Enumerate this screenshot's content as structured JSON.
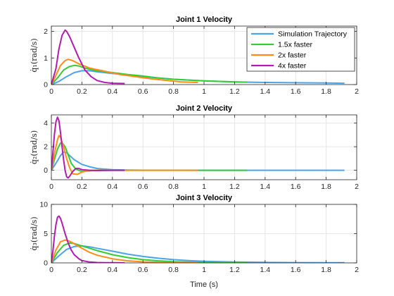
{
  "figure": {
    "xlabel": "Time (s)"
  },
  "legend": [
    "Simulation Trajectory",
    "1.5x faster",
    "2x faster",
    "4x faster"
  ],
  "colors": {
    "sim": "#4da3e8",
    "x1_5": "#33cc33",
    "x2": "#ff8c1a",
    "x4": "#b31bb3",
    "grid": "#e6e6e6",
    "axis": "#262626"
  },
  "chart_data": [
    {
      "type": "line",
      "title": "Joint 1 Velocity",
      "ylabel": "q̇₁(rad/s)",
      "xlim": [
        0,
        2
      ],
      "ylim": [
        0,
        2.2
      ],
      "xticks": [
        0,
        0.2,
        0.4,
        0.6,
        0.8,
        1,
        1.2,
        1.4,
        1.6,
        1.8,
        2
      ],
      "xtick_labels": [
        "0",
        "0.2",
        "0.4",
        "0.6",
        "0.8",
        "1",
        "1.2",
        "1.4",
        "1.6",
        "1.8",
        "2"
      ],
      "yticks": [
        0,
        1,
        2
      ],
      "ytick_labels": [
        "0",
        "1",
        "2"
      ],
      "legend_position": "top-right",
      "series": [
        {
          "name": "Simulation Trajectory",
          "color_key": "sim",
          "x": [
            0,
            0.05,
            0.1,
            0.15,
            0.2,
            0.25,
            0.3,
            0.4,
            0.5,
            0.6,
            0.7,
            0.8,
            0.9,
            1.0,
            1.1,
            1.2,
            1.3,
            1.4,
            1.6,
            1.8,
            1.92
          ],
          "y": [
            0,
            0.12,
            0.3,
            0.45,
            0.52,
            0.52,
            0.48,
            0.42,
            0.35,
            0.3,
            0.25,
            0.2,
            0.17,
            0.14,
            0.12,
            0.1,
            0.09,
            0.08,
            0.07,
            0.06,
            0.05
          ]
        },
        {
          "name": "1.5x faster",
          "color_key": "x1_5",
          "x": [
            0,
            0.04,
            0.08,
            0.12,
            0.15,
            0.18,
            0.22,
            0.3,
            0.4,
            0.5,
            0.6,
            0.7,
            0.8,
            0.9,
            1.0,
            1.1,
            1.2,
            1.28
          ],
          "y": [
            0,
            0.25,
            0.55,
            0.68,
            0.72,
            0.7,
            0.62,
            0.52,
            0.45,
            0.38,
            0.32,
            0.25,
            0.2,
            0.17,
            0.14,
            0.12,
            0.1,
            0.09
          ]
        },
        {
          "name": "2x faster",
          "color_key": "x2",
          "x": [
            0,
            0.03,
            0.06,
            0.09,
            0.11,
            0.14,
            0.18,
            0.25,
            0.35,
            0.45,
            0.55,
            0.65,
            0.75,
            0.85,
            0.96
          ],
          "y": [
            0,
            0.35,
            0.72,
            0.9,
            0.95,
            0.9,
            0.78,
            0.62,
            0.5,
            0.38,
            0.3,
            0.22,
            0.16,
            0.1,
            0.08
          ]
        },
        {
          "name": "4x faster",
          "color_key": "x4",
          "x": [
            0,
            0.03,
            0.05,
            0.07,
            0.09,
            0.1,
            0.12,
            0.15,
            0.18,
            0.22,
            0.26,
            0.3,
            0.35,
            0.4,
            0.48
          ],
          "y": [
            0,
            0.6,
            1.35,
            1.85,
            2.05,
            2.0,
            1.8,
            1.4,
            1.0,
            0.55,
            0.3,
            0.15,
            0.08,
            0.05,
            0.04
          ]
        }
      ]
    },
    {
      "type": "line",
      "title": "Joint 2 Velocity",
      "ylabel": "q̇₂(rad/s)",
      "xlim": [
        0,
        2
      ],
      "ylim": [
        -0.8,
        4.7
      ],
      "xticks": [
        0,
        0.2,
        0.4,
        0.6,
        0.8,
        1,
        1.2,
        1.4,
        1.6,
        1.8,
        2
      ],
      "xtick_labels": [
        "0",
        "0.2",
        "0.4",
        "0.6",
        "0.8",
        "1",
        "1.2",
        "1.4",
        "1.6",
        "1.8",
        "2"
      ],
      "yticks": [
        0,
        2,
        4
      ],
      "ytick_labels": [
        "0",
        "2",
        "4"
      ],
      "series": [
        {
          "name": "Simulation Trajectory",
          "color_key": "sim",
          "x": [
            0,
            0.03,
            0.06,
            0.08,
            0.1,
            0.12,
            0.15,
            0.2,
            0.25,
            0.3,
            0.4,
            0.5,
            0.6,
            0.8,
            1.0,
            1.2,
            1.5,
            1.92
          ],
          "y": [
            0,
            0.6,
            1.25,
            1.55,
            1.5,
            1.25,
            0.9,
            0.5,
            0.3,
            0.15,
            0.05,
            0.02,
            0.01,
            0.01,
            0.0,
            0.0,
            0.0,
            0.0
          ]
        },
        {
          "name": "1.5x faster",
          "color_key": "x1_5",
          "x": [
            0,
            0.02,
            0.04,
            0.06,
            0.07,
            0.09,
            0.11,
            0.13,
            0.16,
            0.2,
            0.25,
            0.3,
            0.4,
            0.6,
            0.8,
            1.0,
            1.28
          ],
          "y": [
            0,
            0.9,
            1.8,
            2.3,
            2.35,
            2.0,
            1.3,
            0.6,
            0.1,
            -0.1,
            -0.05,
            0.0,
            0.0,
            0.0,
            0.0,
            0.0,
            0.0
          ]
        },
        {
          "name": "2x faster",
          "color_key": "x2",
          "x": [
            0,
            0.02,
            0.04,
            0.05,
            0.06,
            0.08,
            0.1,
            0.12,
            0.14,
            0.17,
            0.2,
            0.25,
            0.3,
            0.5,
            0.7,
            0.96
          ],
          "y": [
            0,
            1.4,
            2.6,
            2.95,
            2.8,
            2.0,
            1.0,
            0.2,
            -0.3,
            -0.35,
            -0.15,
            0.0,
            0.0,
            0.0,
            0.0,
            0.0
          ]
        },
        {
          "name": "4x faster",
          "color_key": "x4",
          "x": [
            0,
            0.01,
            0.02,
            0.03,
            0.04,
            0.05,
            0.06,
            0.07,
            0.08,
            0.09,
            0.1,
            0.11,
            0.12,
            0.14,
            0.16,
            0.18,
            0.2,
            0.25,
            0.3,
            0.4,
            0.48
          ],
          "y": [
            0,
            1.5,
            3.0,
            4.1,
            4.5,
            4.2,
            3.2,
            2.0,
            0.9,
            0.0,
            -0.55,
            -0.65,
            -0.5,
            -0.1,
            0.15,
            0.15,
            0.05,
            0.0,
            -0.02,
            0.0,
            0.0
          ]
        }
      ]
    },
    {
      "type": "line",
      "title": "Joint 3 Velocity",
      "ylabel": "q̇₃(rad/s)",
      "xlim": [
        0,
        2
      ],
      "ylim": [
        0,
        10
      ],
      "xticks": [
        0,
        0.2,
        0.4,
        0.6,
        0.8,
        1,
        1.2,
        1.4,
        1.6,
        1.8,
        2
      ],
      "xtick_labels": [
        "0",
        "0.2",
        "0.4",
        "0.6",
        "0.8",
        "1",
        "1.2",
        "1.4",
        "1.6",
        "1.8",
        "2"
      ],
      "yticks": [
        0,
        5,
        10
      ],
      "ytick_labels": [
        "0",
        "5",
        "10"
      ],
      "xlabel": "Time (s)",
      "series": [
        {
          "name": "Simulation Trajectory",
          "color_key": "sim",
          "x": [
            0,
            0.05,
            0.1,
            0.15,
            0.2,
            0.25,
            0.3,
            0.4,
            0.5,
            0.6,
            0.7,
            0.8,
            0.9,
            1.0,
            1.2,
            1.4,
            1.6,
            1.8,
            1.92
          ],
          "y": [
            0,
            1.2,
            2.3,
            2.8,
            2.9,
            2.75,
            2.5,
            2.0,
            1.5,
            1.1,
            0.8,
            0.55,
            0.4,
            0.28,
            0.15,
            0.08,
            0.05,
            0.03,
            0.02
          ]
        },
        {
          "name": "1.5x faster",
          "color_key": "x1_5",
          "x": [
            0,
            0.04,
            0.08,
            0.12,
            0.15,
            0.2,
            0.3,
            0.4,
            0.5,
            0.6,
            0.7,
            0.8,
            1.0,
            1.28
          ],
          "y": [
            0,
            1.8,
            3.0,
            3.4,
            3.3,
            2.9,
            2.1,
            1.4,
            0.9,
            0.55,
            0.35,
            0.2,
            0.08,
            0.03
          ]
        },
        {
          "name": "2x faster",
          "color_key": "x2",
          "x": [
            0,
            0.03,
            0.06,
            0.09,
            0.12,
            0.16,
            0.2,
            0.25,
            0.3,
            0.4,
            0.5,
            0.6,
            0.7,
            0.8,
            0.96
          ],
          "y": [
            0,
            2.2,
            3.6,
            3.9,
            3.7,
            3.1,
            2.5,
            1.8,
            1.3,
            0.7,
            0.35,
            0.18,
            0.1,
            0.05,
            0.02
          ]
        },
        {
          "name": "4x faster",
          "color_key": "x4",
          "x": [
            0,
            0.01,
            0.02,
            0.03,
            0.04,
            0.05,
            0.06,
            0.07,
            0.09,
            0.11,
            0.13,
            0.15,
            0.18,
            0.2,
            0.25,
            0.3,
            0.35,
            0.4,
            0.48
          ],
          "y": [
            0,
            2.0,
            4.5,
            6.5,
            7.8,
            8.0,
            7.6,
            6.8,
            5.0,
            3.4,
            2.2,
            1.4,
            0.7,
            0.4,
            0.15,
            0.06,
            0.03,
            0.02,
            0.01
          ]
        }
      ]
    }
  ]
}
